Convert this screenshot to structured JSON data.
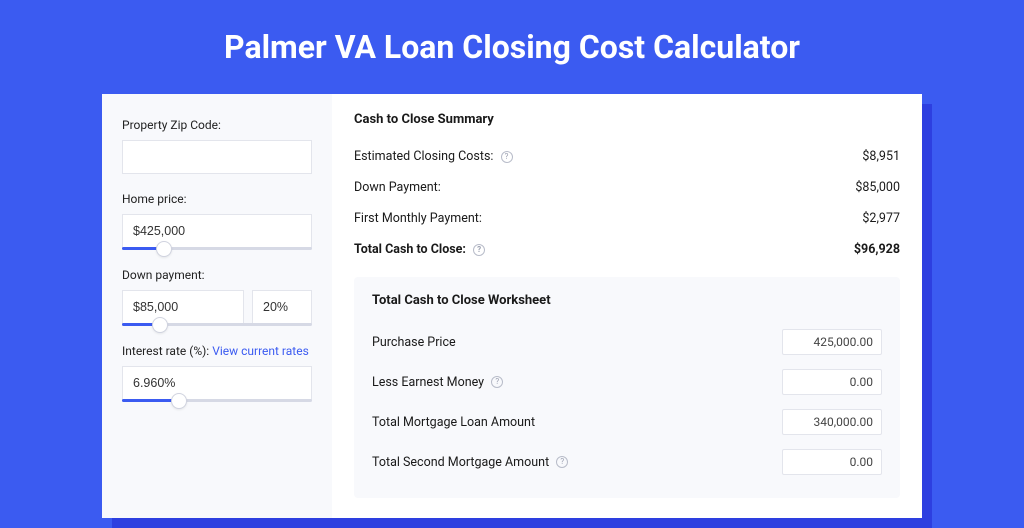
{
  "title": "Palmer VA Loan Closing Cost Calculator",
  "colors": {
    "page_bg": "#3b5bf1",
    "shadow": "#2d3fe0",
    "panel_bg": "#ffffff",
    "left_bg": "#f8f9fc",
    "border": "#e3e5ec",
    "link": "#3b5bf1",
    "slider_track": "#d6d9e5",
    "slider_fill": "#3b5bf1"
  },
  "form": {
    "zip": {
      "label": "Property Zip Code:",
      "value": ""
    },
    "home_price": {
      "label": "Home price:",
      "value": "$425,000",
      "slider_pct": 22
    },
    "down_payment": {
      "label": "Down payment:",
      "value": "$85,000",
      "percent": "20%",
      "slider_pct": 20
    },
    "interest_rate": {
      "label": "Interest rate (%):",
      "link_text": "View current rates",
      "value": "6.960%",
      "slider_pct": 30
    }
  },
  "summary": {
    "title": "Cash to Close Summary",
    "rows": [
      {
        "label": "Estimated Closing Costs:",
        "value": "$8,951",
        "help": true
      },
      {
        "label": "Down Payment:",
        "value": "$85,000",
        "help": false
      },
      {
        "label": "First Monthly Payment:",
        "value": "$2,977",
        "help": false
      }
    ],
    "total": {
      "label": "Total Cash to Close:",
      "value": "$96,928",
      "help": true
    }
  },
  "worksheet": {
    "title": "Total Cash to Close Worksheet",
    "rows": [
      {
        "label": "Purchase Price",
        "value": "425,000.00",
        "help": false
      },
      {
        "label": "Less Earnest Money",
        "value": "0.00",
        "help": true
      },
      {
        "label": "Total Mortgage Loan Amount",
        "value": "340,000.00",
        "help": false
      },
      {
        "label": "Total Second Mortgage Amount",
        "value": "0.00",
        "help": true
      }
    ]
  }
}
